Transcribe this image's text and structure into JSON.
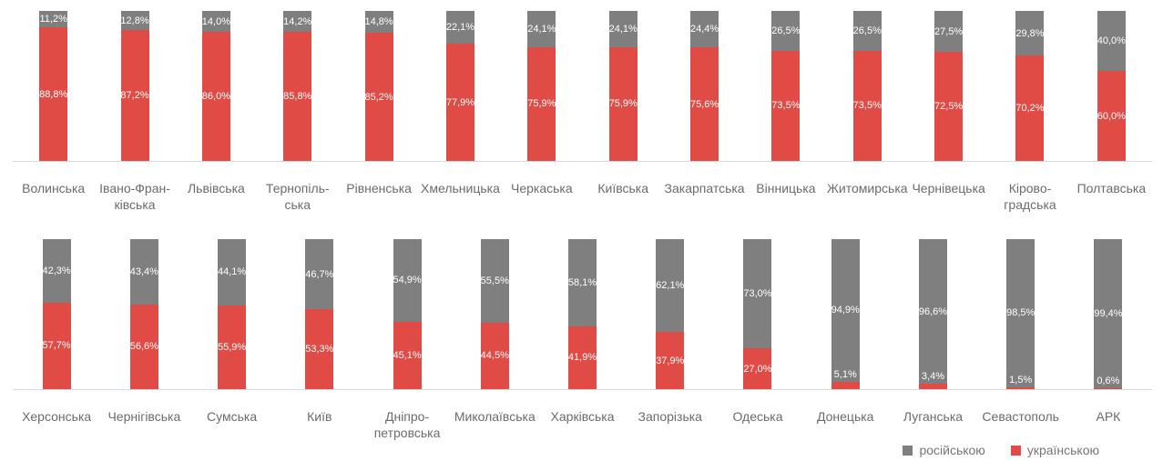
{
  "colors": {
    "russian_gray": "#7f7f7f",
    "ukrainian_red": "#e14b45",
    "axis_line": "#d9d9d9",
    "value_label": "#ffffff",
    "region_label": "#6b6b6b",
    "legend_text": "#757575",
    "background": "#ffffff"
  },
  "legend": {
    "items": [
      {
        "label": "російською",
        "color": "#7f7f7f"
      },
      {
        "label": "українською",
        "color": "#e14b45"
      }
    ]
  },
  "chart_data": {
    "type": "bar",
    "variant": "stacked-100-percent",
    "orientation": "vertical",
    "unit": "%",
    "ylim": [
      0,
      100
    ],
    "grid": false,
    "legend_position": "bottom-right",
    "value_label_format": "decimal-comma-percent",
    "series_names": [
      "російською",
      "українською"
    ],
    "rows": [
      {
        "bars": [
          {
            "label": "Волинська",
            "russian": 11.2,
            "ukrainian": 88.8
          },
          {
            "label": "Івано-Фран-\nківська",
            "russian": 12.8,
            "ukrainian": 87.2
          },
          {
            "label": "Львівська",
            "russian": 14.0,
            "ukrainian": 86.0
          },
          {
            "label": "Тернопіль-\nська",
            "russian": 14.2,
            "ukrainian": 85.8
          },
          {
            "label": "Рівненська",
            "russian": 14.8,
            "ukrainian": 85.2
          },
          {
            "label": "Хмельницька",
            "russian": 22.1,
            "ukrainian": 77.9
          },
          {
            "label": "Черкаська",
            "russian": 24.1,
            "ukrainian": 75.9
          },
          {
            "label": "Київська",
            "russian": 24.1,
            "ukrainian": 75.9
          },
          {
            "label": "Закарпатська",
            "russian": 24.4,
            "ukrainian": 75.6
          },
          {
            "label": "Вінницька",
            "russian": 26.5,
            "ukrainian": 73.5
          },
          {
            "label": "Житомирська",
            "russian": 26.5,
            "ukrainian": 73.5
          },
          {
            "label": "Чернівецька",
            "russian": 27.5,
            "ukrainian": 72.5
          },
          {
            "label": "Кірово-\nградська",
            "russian": 29.8,
            "ukrainian": 70.2
          },
          {
            "label": "Полтавська",
            "russian": 40.0,
            "ukrainian": 60.0
          }
        ]
      },
      {
        "bars": [
          {
            "label": "Херсонська",
            "russian": 42.3,
            "ukrainian": 57.7
          },
          {
            "label": "Чернігівська",
            "russian": 43.4,
            "ukrainian": 56.6
          },
          {
            "label": "Сумська",
            "russian": 44.1,
            "ukrainian": 55.9
          },
          {
            "label": "Київ",
            "russian": 46.7,
            "ukrainian": 53.3
          },
          {
            "label": "Дніпро-\nпетровська",
            "russian": 54.9,
            "ukrainian": 45.1
          },
          {
            "label": "Миколаївська",
            "russian": 55.5,
            "ukrainian": 44.5
          },
          {
            "label": "Харківська",
            "russian": 58.1,
            "ukrainian": 41.9
          },
          {
            "label": "Запорізька",
            "russian": 62.1,
            "ukrainian": 37.9
          },
          {
            "label": "Одеська",
            "russian": 73.0,
            "ukrainian": 27.0
          },
          {
            "label": "Донецька",
            "russian": 94.9,
            "ukrainian": 5.1
          },
          {
            "label": "Луганська",
            "russian": 96.6,
            "ukrainian": 3.4
          },
          {
            "label": "Севастополь",
            "russian": 98.5,
            "ukrainian": 1.5
          },
          {
            "label": "АРК",
            "russian": 99.4,
            "ukrainian": 0.6
          }
        ]
      }
    ]
  }
}
